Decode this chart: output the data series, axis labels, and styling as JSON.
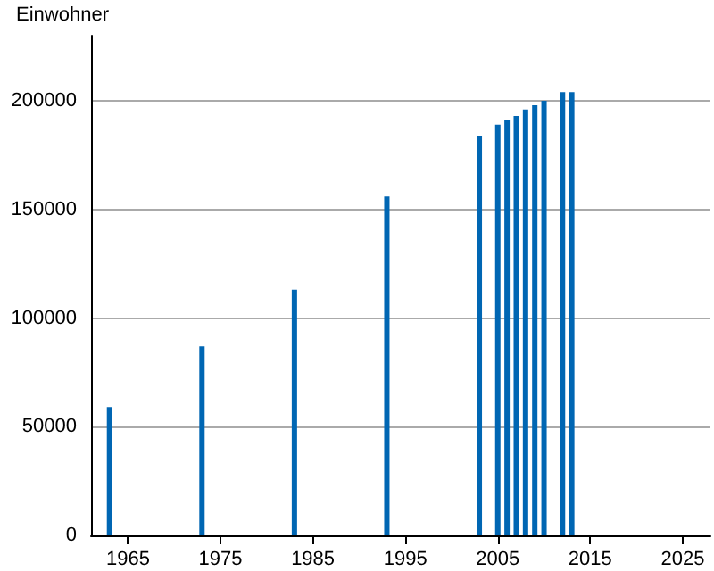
{
  "chart_data": {
    "type": "bar",
    "ylabel": "Einwohner",
    "x": [
      1963,
      1973,
      1983,
      1993,
      2003,
      2005,
      2006,
      2007,
      2008,
      2009,
      2010,
      2012,
      2013
    ],
    "values": [
      59000,
      87000,
      113000,
      156000,
      184000,
      189000,
      191000,
      193000,
      196000,
      198000,
      200000,
      204000,
      204000
    ],
    "color": "#0066b3",
    "xlim": [
      1961,
      2028
    ],
    "xticks": [
      1965,
      1975,
      1985,
      1995,
      2005,
      2015,
      2025
    ],
    "ylim": [
      0,
      230000
    ],
    "yticks": [
      0,
      50000,
      100000,
      150000,
      200000
    ],
    "grid": "y"
  }
}
